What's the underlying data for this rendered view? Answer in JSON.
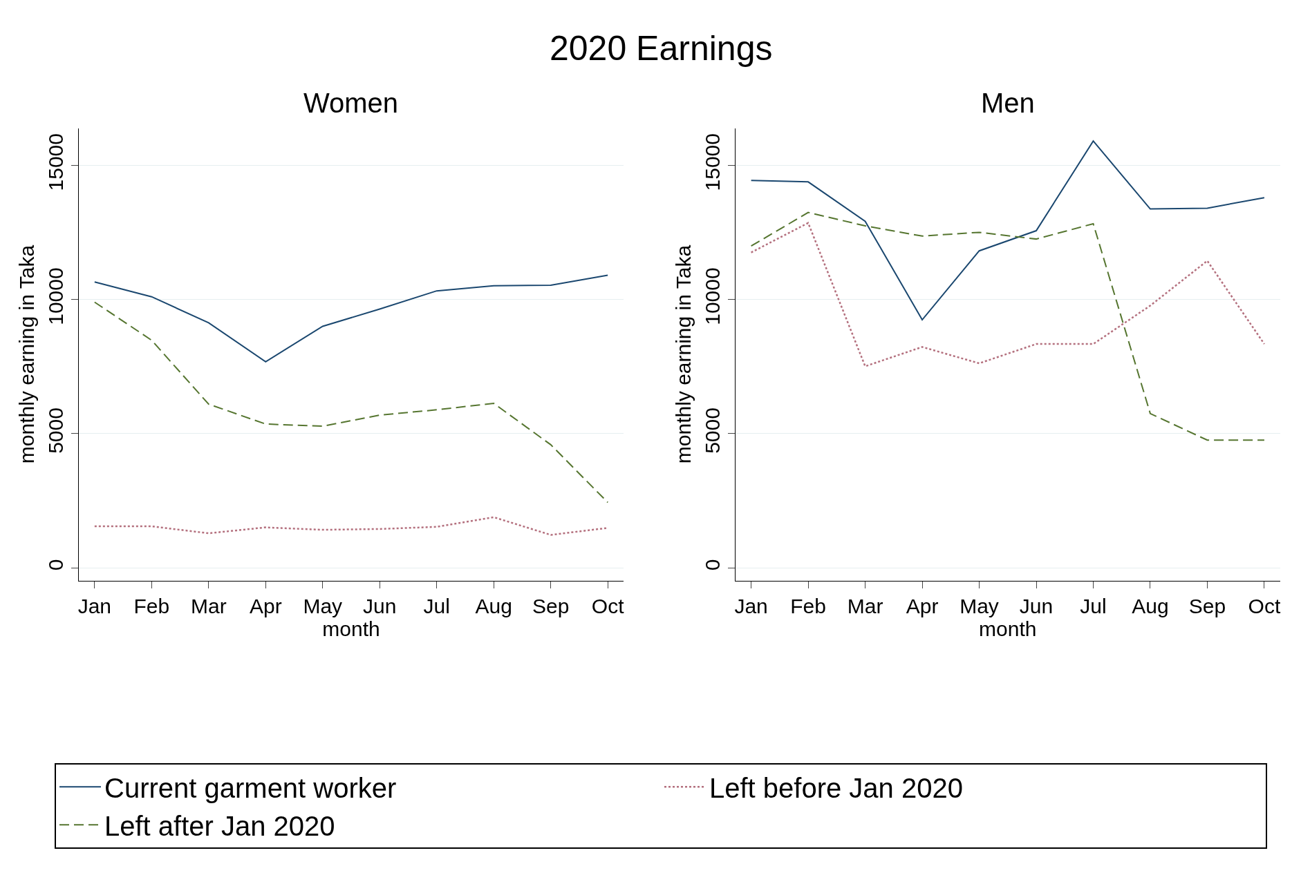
{
  "chart_data": [
    {
      "type": "line",
      "title": "Women",
      "annotations": [
        "2020 Earnings"
      ],
      "xlabel": "month",
      "ylabel": "monthly earning in Taka",
      "categories": [
        "Jan",
        "Feb",
        "Mar",
        "Apr",
        "May",
        "Jun",
        "Jul",
        "Aug",
        "Sep",
        "Oct"
      ],
      "ylim": [
        -470,
        16380
      ],
      "yticks": [
        0,
        5000,
        10000,
        15000
      ],
      "grid": "y",
      "legend": "bottom",
      "series": [
        {
          "name": "Current garment worker",
          "color": "#1a476f",
          "line_style": "solid",
          "values": [
            10650,
            10100,
            9130,
            7680,
            9000,
            9640,
            10320,
            10510,
            10530,
            10900
          ]
        },
        {
          "name": "Left after Jan 2020",
          "color": "#55752f",
          "line_style": "dashed",
          "values": [
            9900,
            8480,
            6100,
            5360,
            5280,
            5690,
            5890,
            6130,
            4590,
            2440
          ]
        },
        {
          "name": "Left before Jan 2020",
          "color": "#b4707e",
          "line_style": "dotted",
          "values": [
            1550,
            1550,
            1290,
            1510,
            1420,
            1450,
            1530,
            1890,
            1230,
            1490
          ]
        }
      ]
    },
    {
      "type": "line",
      "title": "Men",
      "xlabel": "month",
      "ylabel": "monthly earning in Taka",
      "categories": [
        "Jan",
        "Feb",
        "Mar",
        "Apr",
        "May",
        "Jun",
        "Jul",
        "Aug",
        "Sep",
        "Oct"
      ],
      "ylim": [
        -470,
        16380
      ],
      "yticks": [
        0,
        5000,
        10000,
        15000
      ],
      "grid": "y",
      "legend": "bottom",
      "series": [
        {
          "name": "Current garment worker",
          "color": "#1a476f",
          "line_style": "solid",
          "values": [
            14430,
            14380,
            12910,
            9240,
            11810,
            12560,
            15900,
            13370,
            13400,
            13790
          ]
        },
        {
          "name": "Left after Jan 2020",
          "color": "#55752f",
          "line_style": "dashed",
          "values": [
            11990,
            13240,
            12740,
            12360,
            12500,
            12250,
            12820,
            5750,
            4760,
            4760
          ]
        },
        {
          "name": "Left before Jan 2020",
          "color": "#b4707e",
          "line_style": "dotted",
          "values": [
            11750,
            12850,
            7510,
            8230,
            7620,
            8340,
            8340,
            9770,
            11440,
            8340
          ]
        }
      ]
    }
  ]
}
